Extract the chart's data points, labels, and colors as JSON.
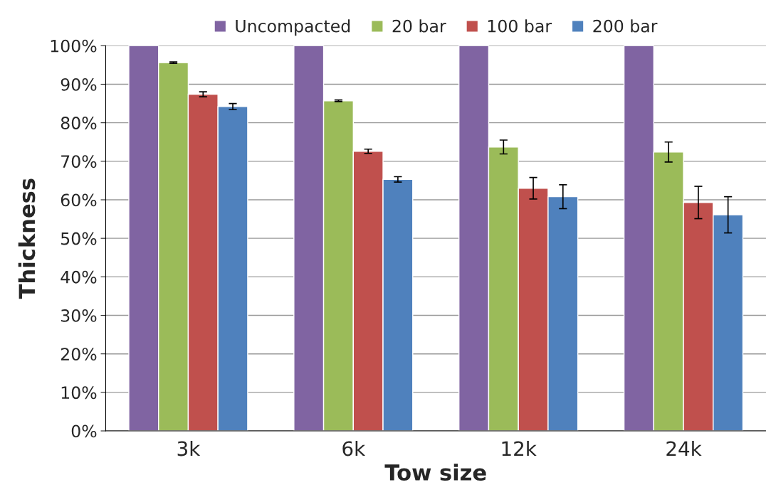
{
  "chart_data": {
    "type": "bar",
    "xlabel": "Tow size",
    "ylabel": "Thickness",
    "categories": [
      "3k",
      "6k",
      "12k",
      "24k"
    ],
    "series": [
      {
        "name": "Uncompacted",
        "color": "#8064a2",
        "values": [
          100,
          100,
          100,
          100
        ]
      },
      {
        "name": "20 bar",
        "color": "#9bbb59",
        "values": [
          95.6,
          85.7,
          73.7,
          72.4
        ],
        "errors": [
          0.2,
          0.2,
          1.8,
          2.6
        ]
      },
      {
        "name": "100 bar",
        "color": "#c0504d",
        "values": [
          87.4,
          72.6,
          63.0,
          59.3
        ],
        "errors": [
          0.65,
          0.55,
          2.8,
          4.2
        ]
      },
      {
        "name": "200 bar",
        "color": "#4f81bd",
        "values": [
          84.2,
          65.3,
          60.8,
          56.1
        ],
        "errors": [
          0.8,
          0.7,
          3.1,
          4.7
        ]
      }
    ],
    "ylim": [
      0,
      100
    ],
    "yticks": [
      {
        "value": 0,
        "label": "0%"
      },
      {
        "value": 10,
        "label": "10%"
      },
      {
        "value": 20,
        "label": "20%"
      },
      {
        "value": 30,
        "label": "30%"
      },
      {
        "value": 40,
        "label": "40%"
      },
      {
        "value": 50,
        "label": "50%"
      },
      {
        "value": 60,
        "label": "60%"
      },
      {
        "value": 70,
        "label": "70%"
      },
      {
        "value": 80,
        "label": "80%"
      },
      {
        "value": 90,
        "label": "90%"
      },
      {
        "value": 100,
        "label": "100%"
      }
    ],
    "grid": "y",
    "legend": "top"
  }
}
